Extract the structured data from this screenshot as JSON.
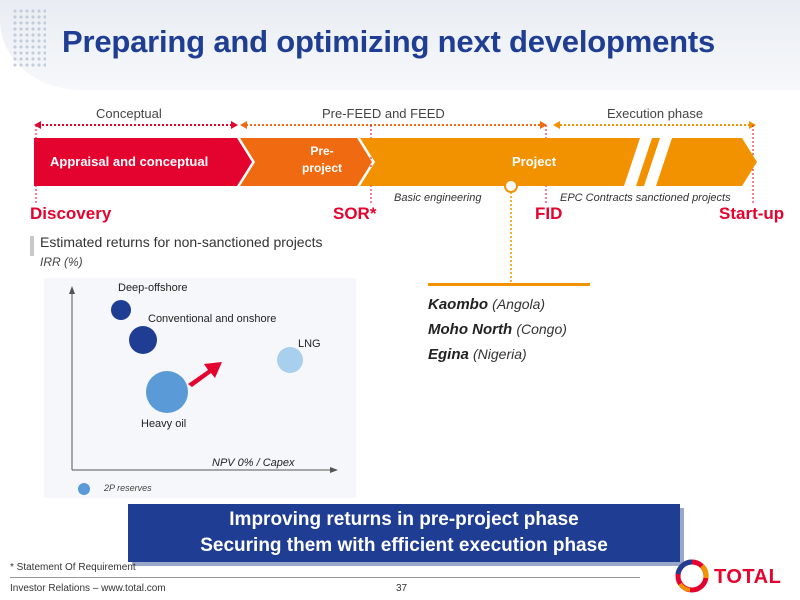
{
  "header": {
    "title": "Preparing and optimizing next developments"
  },
  "phases": {
    "conceptual": "Conceptual",
    "prefeed": "Pre-FEED and FEED",
    "execution": "Execution phase"
  },
  "stages": {
    "appraisal": "Appraisal and conceptual",
    "preproject_line1": "Pre-",
    "preproject_line2": "project",
    "project": "Project"
  },
  "milestones": {
    "discovery": "Discovery",
    "sor": "SOR*",
    "fid": "FID",
    "startup": "Start-up"
  },
  "sublabels": {
    "basic_engineering": "Basic engineering",
    "epc": "EPC Contracts sanctioned projects"
  },
  "section": {
    "title": "Estimated returns for non-sanctioned projects",
    "irr_label": "IRR (%)"
  },
  "chart_data": {
    "type": "scatter",
    "xlabel": "NPV 0% / Capex",
    "ylabel": "IRR (%)",
    "legend": "2P reserves",
    "points": [
      {
        "label": "Deep-offshore",
        "color": "#1f3e93"
      },
      {
        "label": "Conventional and onshore",
        "color": "#1f3e93"
      },
      {
        "label": "LNG",
        "color": "#a9cfee"
      },
      {
        "label": "Heavy oil",
        "color": "#5a9ad6"
      }
    ]
  },
  "projects": [
    {
      "name": "Kaombo",
      "country": "(Angola)"
    },
    {
      "name": "Moho North",
      "country": "(Congo)"
    },
    {
      "name": "Egina",
      "country": "(Nigeria)"
    }
  ],
  "banner": {
    "line1": "Improving returns in pre-project phase",
    "line2": "Securing them with efficient execution phase"
  },
  "footer": {
    "footnote": "* Statement Of Requirement",
    "investor": "Investor Relations – www.total.com",
    "page": "37",
    "logo": "TOTAL"
  },
  "colors": {
    "brand_blue": "#1f3e93",
    "red": "#e4032e",
    "orange_dark": "#ef6a10",
    "orange": "#f39200"
  }
}
